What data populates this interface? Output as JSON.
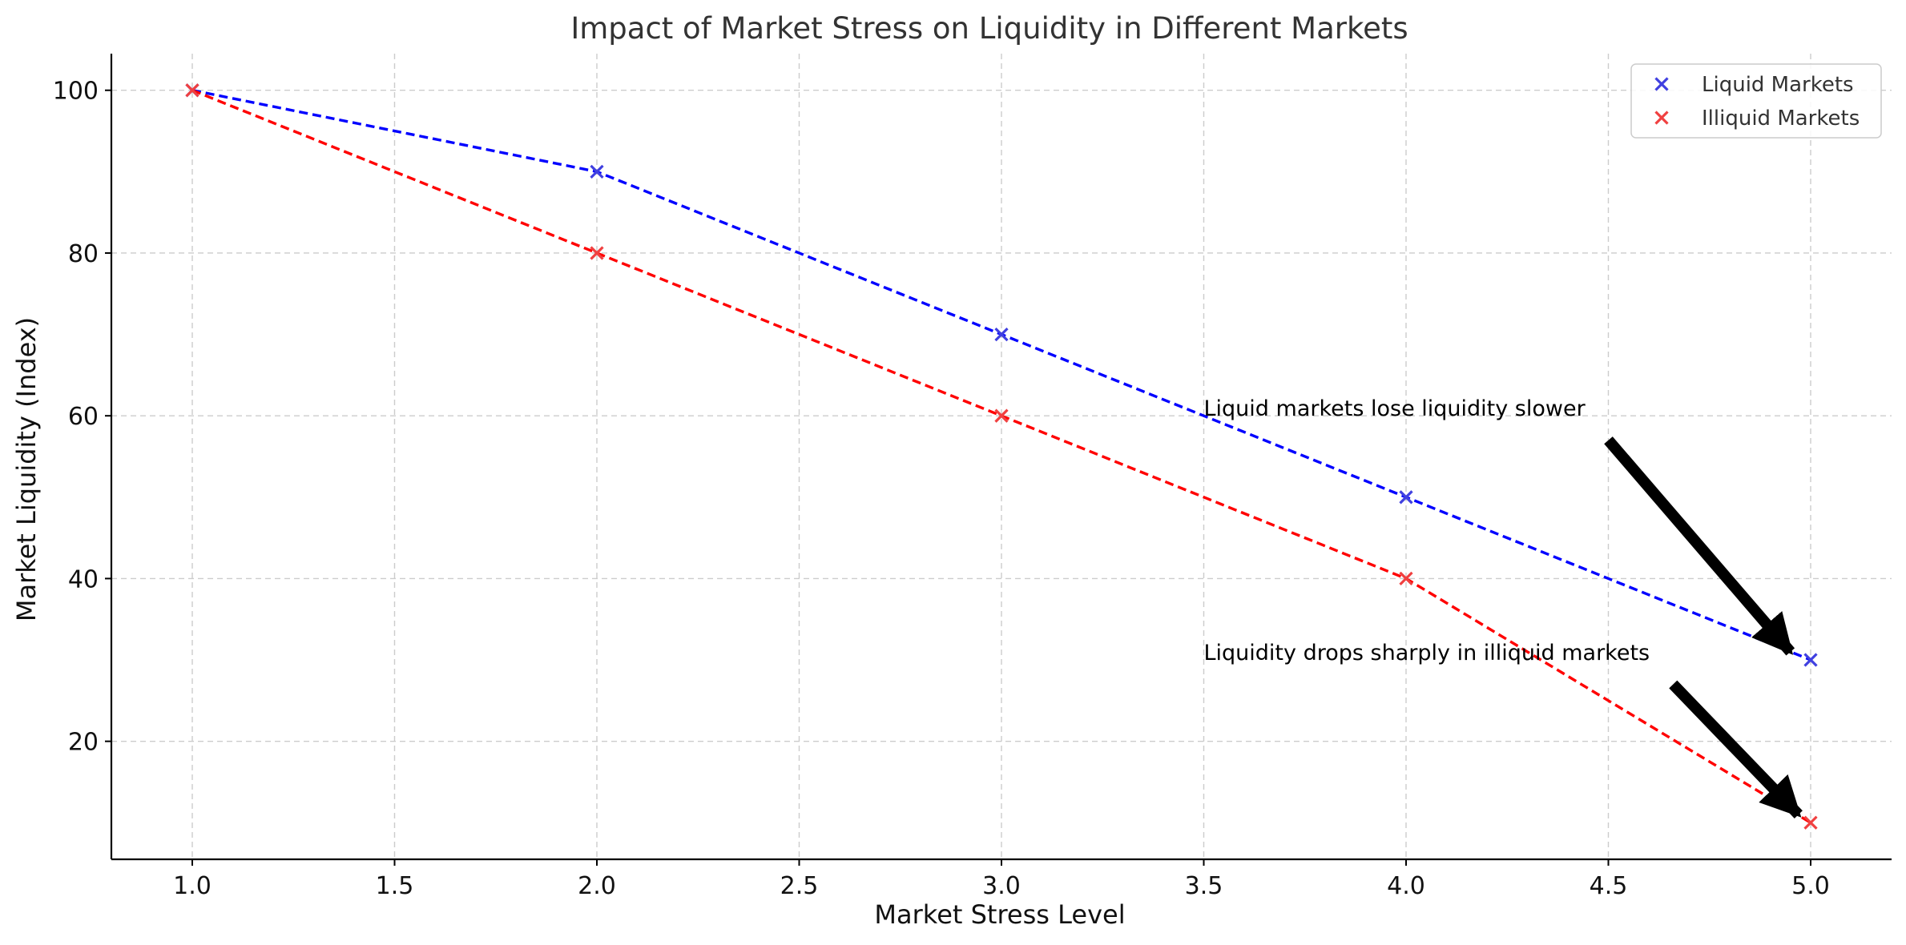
{
  "chart_data": {
    "type": "line",
    "title": "Impact of Market Stress on Liquidity in Different Markets",
    "xlabel": "Market Stress Level",
    "ylabel": "Market Liquidity (Index)",
    "xlim": [
      0.8,
      5.2
    ],
    "ylim": [
      5.5,
      104.5
    ],
    "x_ticks": [
      1.0,
      1.5,
      2.0,
      2.5,
      3.0,
      3.5,
      4.0,
      4.5,
      5.0
    ],
    "y_ticks": [
      20,
      40,
      60,
      80,
      100
    ],
    "x_tick_labels": [
      "1.0",
      "1.5",
      "2.0",
      "2.5",
      "3.0",
      "3.5",
      "4.0",
      "4.5",
      "5.0"
    ],
    "y_tick_labels": [
      "20",
      "40",
      "60",
      "80",
      "100"
    ],
    "grid": true,
    "legend_position": "top-right",
    "series": [
      {
        "name": "Liquid Markets",
        "x": [
          1,
          2,
          3,
          4,
          5
        ],
        "y": [
          100,
          90,
          70,
          50,
          30
        ],
        "line_color": "#0000ff",
        "marker_color": "#4040e0",
        "line_style": "dashed",
        "marker": "x"
      },
      {
        "name": "Illiquid Markets",
        "x": [
          1,
          2,
          3,
          4,
          5
        ],
        "y": [
          100,
          80,
          60,
          40,
          10
        ],
        "line_color": "#ff0000",
        "marker_color": "#f04040",
        "line_style": "dashed",
        "marker": "x"
      }
    ],
    "annotations": [
      {
        "text": "Liquid markets lose liquidity slower",
        "text_x": 3.5,
        "text_y": 60,
        "arrow_tail": [
          4.5,
          57
        ],
        "arrow_head": [
          4.95,
          31
        ]
      },
      {
        "text": "Liquidity drops sharply in illiquid markets",
        "text_x": 3.5,
        "text_y": 30,
        "arrow_tail": [
          4.66,
          27
        ],
        "arrow_head": [
          4.97,
          11
        ]
      }
    ]
  }
}
